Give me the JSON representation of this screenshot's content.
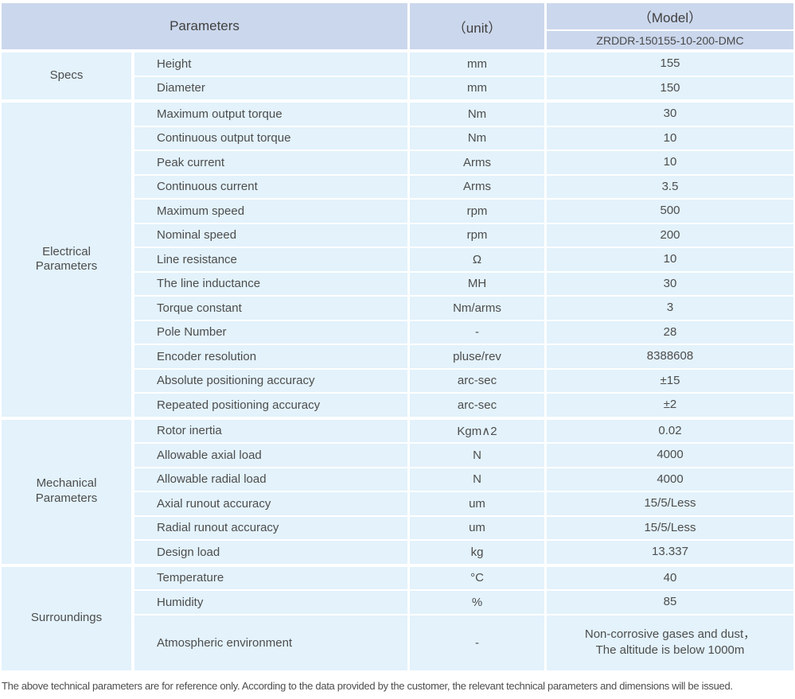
{
  "header": {
    "parameters": "Parameters",
    "unit": "（unit）",
    "model": "（Model）",
    "model_value": "ZRDDR-150155-10-200-DMC"
  },
  "groups": [
    {
      "label": "Specs",
      "rows": [
        {
          "name": "Height",
          "unit": "mm",
          "value": "155"
        },
        {
          "name": "Diameter",
          "unit": "mm",
          "value": "150"
        }
      ]
    },
    {
      "label": "Electrical\nParameters",
      "rows": [
        {
          "name": "Maximum output torque",
          "unit": "Nm",
          "value": "30"
        },
        {
          "name": "Continuous output torque",
          "unit": "Nm",
          "value": "10"
        },
        {
          "name": "Peak current",
          "unit": "Arms",
          "value": "10"
        },
        {
          "name": "Continuous current",
          "unit": "Arms",
          "value": "3.5"
        },
        {
          "name": "Maximum speed",
          "unit": "rpm",
          "value": "500"
        },
        {
          "name": "Nominal speed",
          "unit": "rpm",
          "value": "200"
        },
        {
          "name": "Line resistance",
          "unit": "Ω",
          "value": "10"
        },
        {
          "name": "The line inductance",
          "unit": "MH",
          "value": "30"
        },
        {
          "name": "Torque constant",
          "unit": "Nm/arms",
          "value": "3"
        },
        {
          "name": "Pole Number",
          "unit": "-",
          "value": "28"
        },
        {
          "name": "Encoder resolution",
          "unit": "pluse/rev",
          "value": "8388608"
        },
        {
          "name": "Absolute positioning accuracy",
          "unit": "arc-sec",
          "value": "±15"
        },
        {
          "name": "Repeated positioning accuracy",
          "unit": "arc-sec",
          "value": "±2"
        }
      ]
    },
    {
      "label": "Mechanical\nParameters",
      "rows": [
        {
          "name": "Rotor inertia",
          "unit": "Kgm∧2",
          "value": "0.02"
        },
        {
          "name": "Allowable axial load",
          "unit": "N",
          "value": "4000"
        },
        {
          "name": "Allowable radial load",
          "unit": "N",
          "value": "4000"
        },
        {
          "name": "Axial runout accuracy",
          "unit": "um",
          "value": "15/5/Less"
        },
        {
          "name": "Radial runout accuracy",
          "unit": "um",
          "value": "15/5/Less"
        },
        {
          "name": "Design load",
          "unit": "kg",
          "value": "13.337"
        }
      ]
    },
    {
      "label": "Surroundings",
      "rows": [
        {
          "name": "Temperature",
          "unit": "°C",
          "value": "40"
        },
        {
          "name": "Humidity",
          "unit": "%",
          "value": "85"
        },
        {
          "name": "Atmospheric environment",
          "unit": "-",
          "value": "Non-corrosive gases and dust，\nThe altitude is below 1000m"
        }
      ]
    }
  ],
  "footer": {
    "note": "The above technical parameters are for reference only. According to the data provided by the customer, the relevant technical parameters and dimensions will be issued."
  },
  "colors": {
    "header_bg": "#cbd7ec",
    "cell_bg": "#e3f2fb",
    "text": "#4d4d4d"
  }
}
